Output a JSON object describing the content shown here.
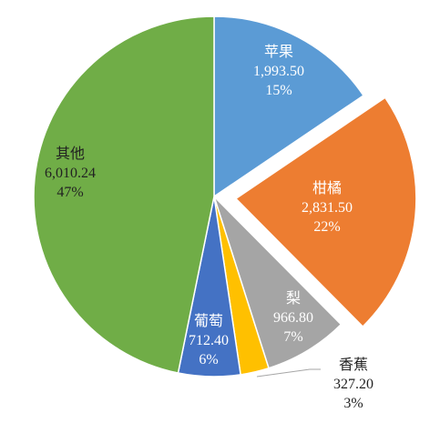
{
  "chart_data": {
    "type": "pie",
    "title": "",
    "slices": [
      {
        "name": "苹果",
        "value": 1993.5,
        "value_label": "1,993.50",
        "percent_label": "15%",
        "color": "#5b9bd5",
        "exploded": false
      },
      {
        "name": "柑橘",
        "value": 2831.5,
        "value_label": "2,831.50",
        "percent_label": "22%",
        "color": "#ed7d31",
        "exploded": true
      },
      {
        "name": "梨",
        "value": 966.8,
        "value_label": "966.80",
        "percent_label": "7%",
        "color": "#a5a5a5",
        "exploded": false
      },
      {
        "name": "香蕉",
        "value": 327.2,
        "value_label": "327.20",
        "percent_label": "3%",
        "color": "#ffc000",
        "exploded": false
      },
      {
        "name": "葡萄",
        "value": 712.4,
        "value_label": "712.40",
        "percent_label": "6%",
        "color": "#4472c4",
        "exploded": false
      },
      {
        "name": "其他",
        "value": 6010.24,
        "value_label": "6,010.24",
        "percent_label": "47%",
        "color": "#70ad47",
        "exploded": false
      }
    ],
    "start": "12 o'clock",
    "direction": "clockwise",
    "legend": "none"
  }
}
